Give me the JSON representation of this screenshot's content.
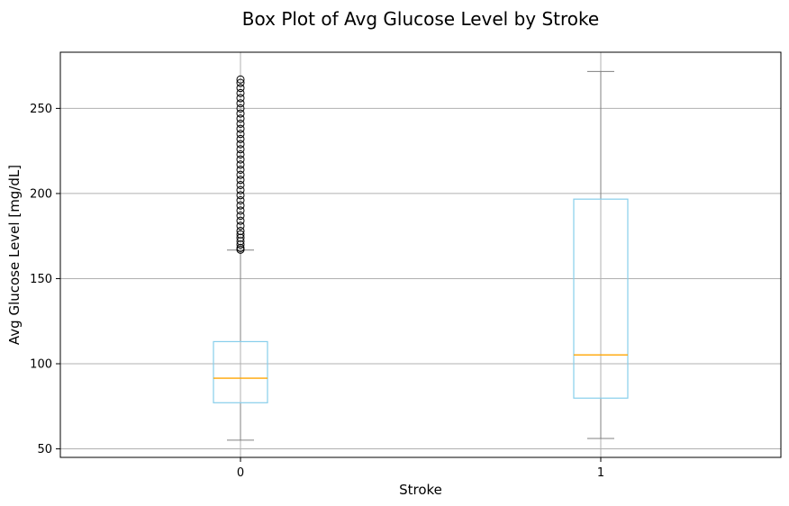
{
  "chart_data": {
    "type": "box",
    "title": "Box Plot of Avg Glucose Level by Stroke",
    "xlabel": "Stroke",
    "ylabel": "Avg Glucose Level [mg/dL]",
    "categories": [
      "0",
      "1"
    ],
    "ylim": [
      45,
      283
    ],
    "yticks": [
      50,
      100,
      150,
      200,
      250
    ],
    "grid": true,
    "boxes": [
      {
        "category": "0",
        "whisker_low": 55.1,
        "q1": 77.1,
        "median": 91.5,
        "q3": 113.0,
        "whisker_high": 166.8,
        "outliers": [
          167,
          168,
          170,
          172,
          174,
          176,
          178,
          181,
          184,
          187,
          190,
          193,
          196,
          199,
          202,
          205,
          208,
          211,
          214,
          217,
          220,
          223,
          226,
          229,
          232,
          235,
          238,
          241,
          244,
          247,
          250,
          253,
          256,
          259,
          262,
          265,
          267
        ]
      },
      {
        "category": "1",
        "whisker_low": 56.1,
        "q1": 79.8,
        "median": 105.2,
        "q3": 196.7,
        "whisker_high": 271.7,
        "outliers": []
      }
    ],
    "colors": {
      "box": "#87ceeb",
      "median": "#ffa500",
      "whisker": "#808080",
      "grid": "#b0b0b0",
      "outlier": "#000000",
      "frame": "#000000"
    }
  }
}
